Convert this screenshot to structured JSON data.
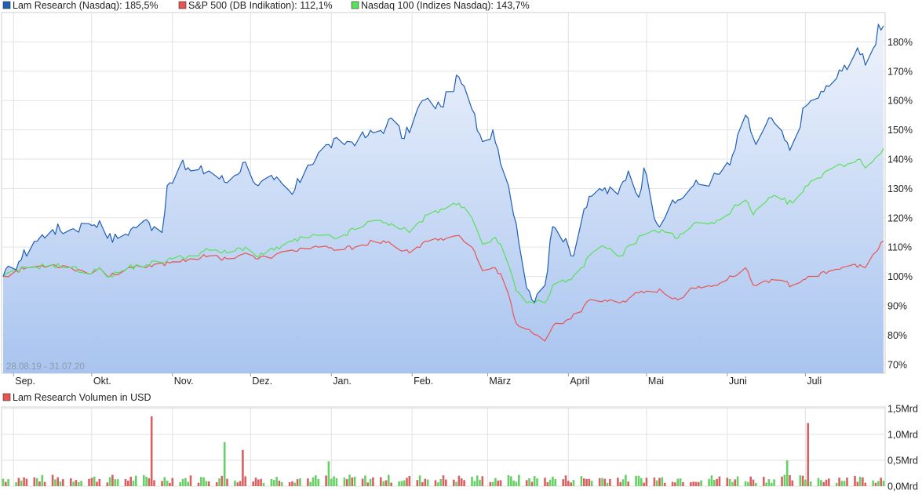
{
  "legend": [
    {
      "label": "Lam Research (Nasdaq): 185,5%",
      "color": "#1f5fb4"
    },
    {
      "label": "S&P 500 (DB Indikation): 112,1%",
      "color": "#e85454"
    },
    {
      "label": "Nasdaq 100 (Indizes Nasdaq): 143,7%",
      "color": "#59e059"
    }
  ],
  "volume_legend": {
    "label": "Lam Research Volumen in USD",
    "color": "#e85454"
  },
  "range_label": "28.08.19 - 31.07.20",
  "colors": {
    "up": "#66d066",
    "down": "#d86060",
    "grid": "#e2e2e2",
    "fill_top": "#eef3fc",
    "fill_bottom": "#a9c4ef"
  },
  "chart_data": [
    {
      "type": "line",
      "title": "",
      "x_range": [
        "2019-08-28",
        "2020-07-31"
      ],
      "x_ticks": [
        {
          "label": "Sep.",
          "date": "2019-09-01"
        },
        {
          "label": "Okt.",
          "date": "2019-10-01"
        },
        {
          "label": "Nov.",
          "date": "2019-11-01"
        },
        {
          "label": "Dez.",
          "date": "2019-12-01"
        },
        {
          "label": "Jan.",
          "date": "2020-01-01"
        },
        {
          "label": "Feb.",
          "date": "2020-02-01"
        },
        {
          "label": "März",
          "date": "2020-03-01"
        },
        {
          "label": "April",
          "date": "2020-04-01"
        },
        {
          "label": "Mai",
          "date": "2020-05-01"
        },
        {
          "label": "Juni",
          "date": "2020-06-01"
        },
        {
          "label": "Juli",
          "date": "2020-07-01"
        }
      ],
      "y_ticks": [
        "70%",
        "80%",
        "90%",
        "100%",
        "110%",
        "120%",
        "130%",
        "140%",
        "150%",
        "160%",
        "170%",
        "180%"
      ],
      "ylim": [
        67,
        190
      ],
      "grid": true,
      "legend_position": "top-left",
      "series": [
        {
          "name": "Lam Research (Nasdaq)",
          "color": "#1f5fb4",
          "filled": true,
          "points": [
            [
              "2019-08-28",
              100
            ],
            [
              "2019-09-03",
              105
            ],
            [
              "2019-09-09",
              112
            ],
            [
              "2019-09-16",
              116
            ],
            [
              "2019-09-23",
              116
            ],
            [
              "2019-09-30",
              118
            ],
            [
              "2019-10-04",
              119
            ],
            [
              "2019-10-07",
              113
            ],
            [
              "2019-10-11",
              113
            ],
            [
              "2019-10-16",
              116
            ],
            [
              "2019-10-21",
              119
            ],
            [
              "2019-10-25",
              117
            ],
            [
              "2019-10-28",
              115
            ],
            [
              "2019-10-30",
              131
            ],
            [
              "2019-11-04",
              138
            ],
            [
              "2019-11-08",
              136
            ],
            [
              "2019-11-15",
              136
            ],
            [
              "2019-11-22",
              132
            ],
            [
              "2019-11-29",
              139
            ],
            [
              "2019-12-04",
              131
            ],
            [
              "2019-12-10",
              133
            ],
            [
              "2019-12-17",
              128
            ],
            [
              "2019-12-23",
              138
            ],
            [
              "2019-12-31",
              145
            ],
            [
              "2020-01-08",
              146
            ],
            [
              "2020-01-15",
              148
            ],
            [
              "2020-01-22",
              151
            ],
            [
              "2020-01-24",
              154
            ],
            [
              "2020-01-29",
              147
            ],
            [
              "2020-02-05",
              160
            ],
            [
              "2020-02-12",
              158
            ],
            [
              "2020-02-19",
              168
            ],
            [
              "2020-02-24",
              157
            ],
            [
              "2020-02-28",
              146
            ],
            [
              "2020-03-03",
              150
            ],
            [
              "2020-03-09",
              131
            ],
            [
              "2020-03-12",
              118
            ],
            [
              "2020-03-16",
              96
            ],
            [
              "2020-03-18",
              92
            ],
            [
              "2020-03-20",
              94
            ],
            [
              "2020-03-23",
              97
            ],
            [
              "2020-03-26",
              117
            ],
            [
              "2020-03-31",
              113
            ],
            [
              "2020-04-03",
              107
            ],
            [
              "2020-04-07",
              123
            ],
            [
              "2020-04-13",
              130
            ],
            [
              "2020-04-20",
              128
            ],
            [
              "2020-04-24",
              136
            ],
            [
              "2020-04-28",
              127
            ],
            [
              "2020-04-30",
              137
            ],
            [
              "2020-05-05",
              118
            ],
            [
              "2020-05-12",
              125
            ],
            [
              "2020-05-19",
              131
            ],
            [
              "2020-05-26",
              133
            ],
            [
              "2020-06-02",
              138
            ],
            [
              "2020-06-08",
              155
            ],
            [
              "2020-06-12",
              145
            ],
            [
              "2020-06-18",
              154
            ],
            [
              "2020-06-25",
              143
            ],
            [
              "2020-07-01",
              158
            ],
            [
              "2020-07-08",
              163
            ],
            [
              "2020-07-15",
              170
            ],
            [
              "2020-07-21",
              178
            ],
            [
              "2020-07-24",
              172
            ],
            [
              "2020-07-28",
              179
            ],
            [
              "2020-07-29",
              186
            ],
            [
              "2020-07-31",
              185.5
            ]
          ]
        },
        {
          "name": "S&P 500 (DB Indikation)",
          "color": "#e85454",
          "filled": false,
          "points": [
            [
              "2019-08-28",
              100
            ],
            [
              "2019-09-06",
              103
            ],
            [
              "2019-09-16",
              104
            ],
            [
              "2019-09-23",
              103
            ],
            [
              "2019-10-01",
              101
            ],
            [
              "2019-10-04",
              103
            ],
            [
              "2019-10-08",
              100
            ],
            [
              "2019-10-15",
              103
            ],
            [
              "2019-10-22",
              103
            ],
            [
              "2019-11-01",
              105
            ],
            [
              "2019-11-08",
              106
            ],
            [
              "2019-11-15",
              107
            ],
            [
              "2019-11-22",
              106
            ],
            [
              "2019-11-29",
              108
            ],
            [
              "2019-12-03",
              106
            ],
            [
              "2019-12-10",
              107
            ],
            [
              "2019-12-17",
              109
            ],
            [
              "2019-12-27",
              110
            ],
            [
              "2020-01-03",
              109
            ],
            [
              "2020-01-10",
              110
            ],
            [
              "2020-01-17",
              112
            ],
            [
              "2020-01-24",
              111
            ],
            [
              "2020-01-31",
              108
            ],
            [
              "2020-02-07",
              112
            ],
            [
              "2020-02-12",
              113
            ],
            [
              "2020-02-19",
              114
            ],
            [
              "2020-02-24",
              110
            ],
            [
              "2020-02-28",
              102
            ],
            [
              "2020-03-03",
              103
            ],
            [
              "2020-03-06",
              101
            ],
            [
              "2020-03-09",
              94
            ],
            [
              "2020-03-12",
              84
            ],
            [
              "2020-03-16",
              82
            ],
            [
              "2020-03-20",
              80
            ],
            [
              "2020-03-23",
              78
            ],
            [
              "2020-03-26",
              83
            ],
            [
              "2020-03-31",
              85
            ],
            [
              "2020-04-06",
              88
            ],
            [
              "2020-04-09",
              92
            ],
            [
              "2020-04-15",
              92
            ],
            [
              "2020-04-21",
              91
            ],
            [
              "2020-04-29",
              95
            ],
            [
              "2020-05-07",
              95
            ],
            [
              "2020-05-13",
              92
            ],
            [
              "2020-05-19",
              96
            ],
            [
              "2020-05-27",
              97
            ],
            [
              "2020-06-03",
              100
            ],
            [
              "2020-06-08",
              103
            ],
            [
              "2020-06-11",
              97
            ],
            [
              "2020-06-18",
              99
            ],
            [
              "2020-06-26",
              97
            ],
            [
              "2020-07-02",
              100
            ],
            [
              "2020-07-09",
              101
            ],
            [
              "2020-07-15",
              103
            ],
            [
              "2020-07-22",
              104
            ],
            [
              "2020-07-24",
              103
            ],
            [
              "2020-07-31",
              112.1
            ]
          ]
        },
        {
          "name": "Nasdaq 100 (Indizes Nasdaq)",
          "color": "#59e059",
          "filled": false,
          "points": [
            [
              "2019-08-28",
              100
            ],
            [
              "2019-09-06",
              103
            ],
            [
              "2019-09-16",
              104
            ],
            [
              "2019-09-23",
              103
            ],
            [
              "2019-10-01",
              101
            ],
            [
              "2019-10-04",
              103
            ],
            [
              "2019-10-08",
              100
            ],
            [
              "2019-10-15",
              103
            ],
            [
              "2019-10-22",
              104
            ],
            [
              "2019-11-01",
              106
            ],
            [
              "2019-11-08",
              107
            ],
            [
              "2019-11-15",
              109
            ],
            [
              "2019-11-22",
              108
            ],
            [
              "2019-11-29",
              110
            ],
            [
              "2019-12-03",
              107
            ],
            [
              "2019-12-10",
              109
            ],
            [
              "2019-12-17",
              112
            ],
            [
              "2019-12-27",
              114
            ],
            [
              "2020-01-03",
              113
            ],
            [
              "2020-01-10",
              116
            ],
            [
              "2020-01-17",
              119
            ],
            [
              "2020-01-24",
              118
            ],
            [
              "2020-01-31",
              115
            ],
            [
              "2020-02-07",
              121
            ],
            [
              "2020-02-12",
              123
            ],
            [
              "2020-02-19",
              125
            ],
            [
              "2020-02-24",
              120
            ],
            [
              "2020-02-28",
              111
            ],
            [
              "2020-03-03",
              113
            ],
            [
              "2020-03-06",
              111
            ],
            [
              "2020-03-09",
              104
            ],
            [
              "2020-03-12",
              95
            ],
            [
              "2020-03-16",
              91
            ],
            [
              "2020-03-20",
              92
            ],
            [
              "2020-03-23",
              91
            ],
            [
              "2020-03-26",
              97
            ],
            [
              "2020-03-31",
              98
            ],
            [
              "2020-04-06",
              103
            ],
            [
              "2020-04-09",
              107
            ],
            [
              "2020-04-15",
              110
            ],
            [
              "2020-04-21",
              107
            ],
            [
              "2020-04-29",
              114
            ],
            [
              "2020-05-07",
              116
            ],
            [
              "2020-05-13",
              113
            ],
            [
              "2020-05-19",
              118
            ],
            [
              "2020-05-27",
              118
            ],
            [
              "2020-06-03",
              123
            ],
            [
              "2020-06-08",
              126
            ],
            [
              "2020-06-11",
              121
            ],
            [
              "2020-06-18",
              127
            ],
            [
              "2020-06-26",
              125
            ],
            [
              "2020-07-02",
              131
            ],
            [
              "2020-07-09",
              136
            ],
            [
              "2020-07-15",
              138
            ],
            [
              "2020-07-22",
              140
            ],
            [
              "2020-07-24",
              137
            ],
            [
              "2020-07-31",
              143.7
            ]
          ]
        }
      ]
    },
    {
      "type": "bar",
      "title": "",
      "x_range": [
        "2019-08-28",
        "2020-07-31"
      ],
      "y_ticks": [
        "0,0Mrd",
        "0,5Mrd",
        "1,0Mrd",
        "1,5Mrd"
      ],
      "ylim": [
        0,
        1.5
      ],
      "unit": "Mrd USD",
      "series": [
        {
          "name": "Lam Research Volumen in USD",
          "up_color": "#66d066",
          "down_color": "#d86060",
          "spikes": [
            [
              "2019-10-24",
              1.35,
              "down"
            ],
            [
              "2019-11-21",
              0.85,
              "up"
            ],
            [
              "2019-11-28",
              0.7,
              "down"
            ],
            [
              "2019-12-31",
              0.48,
              "up"
            ],
            [
              "2020-06-24",
              0.5,
              "up"
            ],
            [
              "2020-07-02",
              1.22,
              "down"
            ]
          ],
          "typical_volume": 0.18
        }
      ]
    }
  ]
}
